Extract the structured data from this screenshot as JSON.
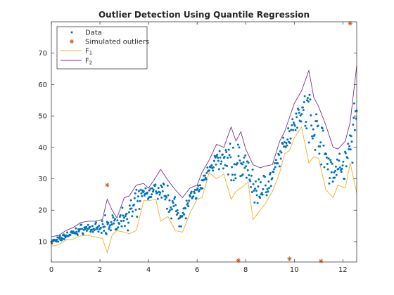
{
  "chart_data": {
    "type": "scatter",
    "title": "Outlier Detection Using Quantile Regression",
    "xlabel": "",
    "ylabel": "",
    "xlim": [
      0,
      12.57
    ],
    "ylim": [
      3.5,
      80
    ],
    "x_ticks": [
      0,
      2,
      4,
      6,
      8,
      10,
      12
    ],
    "y_ticks": [
      10,
      20,
      30,
      40,
      50,
      60,
      70
    ],
    "grid": false,
    "legend_position": "top-left",
    "legend": {
      "data": "Data",
      "outliers": "Simulated outliers",
      "f1_base": "F",
      "f1_sub": "1",
      "f2_base": "F",
      "f2_sub": "2"
    },
    "colors": {
      "data": "#0072BD",
      "outliers": "#D95319",
      "f1": "#EDB120",
      "f2": "#7E2F8E"
    },
    "series": [
      {
        "name": "Simulated outliers",
        "kind": "markers",
        "points": [
          [
            2.3,
            28.0
          ],
          [
            7.7,
            4.0
          ],
          [
            9.8,
            4.5
          ],
          [
            11.1,
            3.8
          ],
          [
            12.3,
            79.5
          ]
        ]
      },
      {
        "name": "F1",
        "kind": "line",
        "points": [
          [
            0.0,
            8.5
          ],
          [
            0.3,
            9.0
          ],
          [
            0.6,
            10.5
          ],
          [
            0.9,
            10.8
          ],
          [
            1.2,
            11.8
          ],
          [
            1.5,
            12.0
          ],
          [
            1.8,
            11.5
          ],
          [
            2.1,
            11.0
          ],
          [
            2.3,
            6.5
          ],
          [
            2.5,
            12.0
          ],
          [
            2.7,
            13.5
          ],
          [
            3.0,
            13.0
          ],
          [
            3.2,
            12.5
          ],
          [
            3.5,
            13.5
          ],
          [
            3.8,
            23.0
          ],
          [
            4.0,
            23.0
          ],
          [
            4.3,
            23.5
          ],
          [
            4.5,
            16.5
          ],
          [
            4.8,
            18.0
          ],
          [
            5.1,
            13.5
          ],
          [
            5.4,
            13.0
          ],
          [
            5.7,
            19.0
          ],
          [
            6.0,
            23.5
          ],
          [
            6.2,
            24.0
          ],
          [
            6.5,
            32.0
          ],
          [
            6.8,
            30.0
          ],
          [
            7.1,
            31.5
          ],
          [
            7.4,
            23.5
          ],
          [
            7.6,
            26.0
          ],
          [
            7.8,
            27.0
          ],
          [
            8.1,
            29.0
          ],
          [
            8.3,
            17.0
          ],
          [
            8.6,
            20.0
          ],
          [
            8.8,
            22.0
          ],
          [
            9.1,
            26.0
          ],
          [
            9.4,
            32.0
          ],
          [
            9.6,
            38.0
          ],
          [
            9.8,
            39.0
          ],
          [
            10.0,
            43.0
          ],
          [
            10.3,
            46.5
          ],
          [
            10.6,
            35.0
          ],
          [
            10.8,
            37.0
          ],
          [
            11.0,
            36.5
          ],
          [
            11.3,
            26.5
          ],
          [
            11.6,
            24.0
          ],
          [
            11.8,
            28.0
          ],
          [
            12.1,
            27.0
          ],
          [
            12.3,
            35.0
          ],
          [
            12.57,
            25.5
          ]
        ]
      },
      {
        "name": "F2",
        "kind": "line",
        "points": [
          [
            0.0,
            11.5
          ],
          [
            0.3,
            12.0
          ],
          [
            0.6,
            13.5
          ],
          [
            0.9,
            14.5
          ],
          [
            1.2,
            16.0
          ],
          [
            1.5,
            16.5
          ],
          [
            1.8,
            16.5
          ],
          [
            2.1,
            17.0
          ],
          [
            2.3,
            23.5
          ],
          [
            2.5,
            20.0
          ],
          [
            2.7,
            17.5
          ],
          [
            3.0,
            24.0
          ],
          [
            3.2,
            24.5
          ],
          [
            3.5,
            28.0
          ],
          [
            3.8,
            28.5
          ],
          [
            4.0,
            27.0
          ],
          [
            4.3,
            30.5
          ],
          [
            4.5,
            33.0
          ],
          [
            4.8,
            29.5
          ],
          [
            5.1,
            26.5
          ],
          [
            5.4,
            24.0
          ],
          [
            5.7,
            27.0
          ],
          [
            6.0,
            28.0
          ],
          [
            6.2,
            32.0
          ],
          [
            6.5,
            36.0
          ],
          [
            6.8,
            41.0
          ],
          [
            7.1,
            40.0
          ],
          [
            7.4,
            46.5
          ],
          [
            7.6,
            42.0
          ],
          [
            7.8,
            45.0
          ],
          [
            8.0,
            39.5
          ],
          [
            8.3,
            34.5
          ],
          [
            8.6,
            33.5
          ],
          [
            8.8,
            34.0
          ],
          [
            9.1,
            34.5
          ],
          [
            9.4,
            42.0
          ],
          [
            9.6,
            45.0
          ],
          [
            9.8,
            49.5
          ],
          [
            10.0,
            54.0
          ],
          [
            10.3,
            58.0
          ],
          [
            10.6,
            64.5
          ],
          [
            10.8,
            56.0
          ],
          [
            11.0,
            53.0
          ],
          [
            11.3,
            47.0
          ],
          [
            11.6,
            40.0
          ],
          [
            11.8,
            39.5
          ],
          [
            12.1,
            42.0
          ],
          [
            12.3,
            48.0
          ],
          [
            12.57,
            66.0
          ]
        ]
      }
    ]
  }
}
